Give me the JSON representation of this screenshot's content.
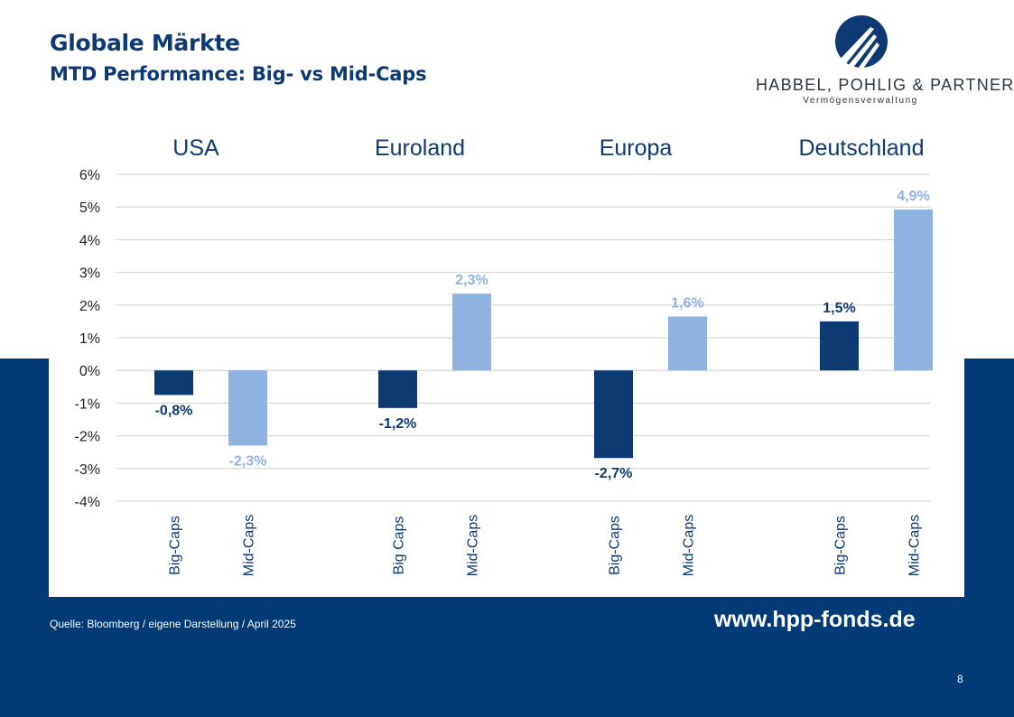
{
  "slide": {
    "title": "Globale Märkte",
    "subtitle": "MTD Performance: Big- vs Mid-Caps",
    "source": "Quelle: Bloomberg / eigene Darstellung / April 2025",
    "website": "www.hpp-fonds.de",
    "page_number": "8"
  },
  "logo": {
    "name": "HABBEL, POHLIG & PARTNER",
    "subtitle": "Vermögensverwaltung",
    "icon": "hpp-logo-mark"
  },
  "colors": {
    "brand_navy": "#003b78",
    "big_caps": "#0e3a73",
    "mid_caps": "#8fb3e0"
  },
  "chart_data": {
    "type": "bar",
    "unit": "%",
    "ylim": [
      -4,
      6
    ],
    "yticks": [
      "6%",
      "5%",
      "4%",
      "3%",
      "2%",
      "1%",
      "0%",
      "-1%",
      "-2%",
      "-3%",
      "-4%"
    ],
    "grid": true,
    "groups": [
      {
        "name": "USA",
        "bars": [
          {
            "category": "Big-Caps",
            "value": -0.75,
            "label": "-0,8%",
            "kind": "big"
          },
          {
            "category": "Mid-Caps",
            "value": -2.3,
            "label": "-2,3%",
            "kind": "mid"
          }
        ]
      },
      {
        "name": "Euroland",
        "bars": [
          {
            "category": "Big Caps",
            "value": -1.15,
            "label": "-1,2%",
            "kind": "big"
          },
          {
            "category": "Mid-Caps",
            "value": 2.35,
            "label": "2,3%",
            "kind": "mid"
          }
        ]
      },
      {
        "name": "Europa",
        "bars": [
          {
            "category": "Big-Caps",
            "value": -2.68,
            "label": "-2,7%",
            "kind": "big"
          },
          {
            "category": "Mid-Caps",
            "value": 1.65,
            "label": "1,6%",
            "kind": "mid"
          }
        ]
      },
      {
        "name": "Deutschland",
        "bars": [
          {
            "category": "Big-Caps",
            "value": 1.5,
            "label": "1,5%",
            "kind": "big"
          },
          {
            "category": "Mid-Caps",
            "value": 4.92,
            "label": "4,9%",
            "kind": "mid"
          }
        ]
      }
    ]
  }
}
